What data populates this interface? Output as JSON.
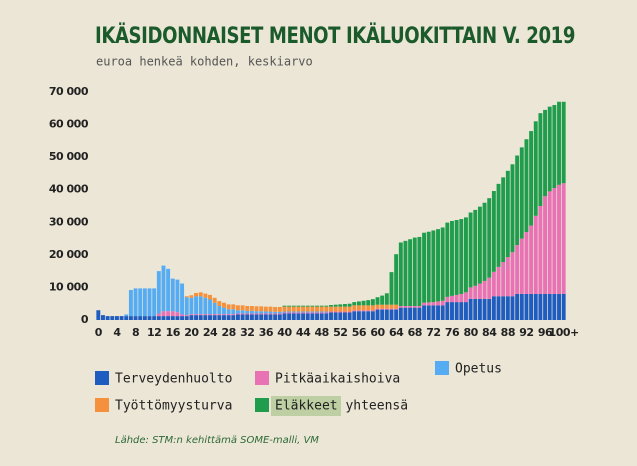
{
  "chart_data": {
    "type": "stacked-bar",
    "title": "IKÄSIDONNAISET MENOT IKÄLUOKITTAIN V. 2019",
    "subtitle": "euroa henkeä kohden, keskiarvo",
    "source": "Lähde: STM:n kehittämä SOME-malli, VM",
    "categories": [
      "0",
      null,
      null,
      null,
      "4",
      null,
      null,
      null,
      "8",
      null,
      null,
      null,
      "12",
      null,
      null,
      null,
      "16",
      null,
      null,
      null,
      "20",
      null,
      null,
      null,
      "24",
      null,
      null,
      null,
      "28",
      null,
      null,
      null,
      "32",
      null,
      null,
      null,
      "36",
      null,
      null,
      null,
      "40",
      null,
      null,
      null,
      "44",
      null,
      null,
      null,
      "48",
      null,
      null,
      null,
      "52",
      null,
      null,
      null,
      "56",
      null,
      null,
      null,
      "60",
      null,
      null,
      null,
      "64",
      null,
      null,
      null,
      "68",
      null,
      null,
      null,
      "72",
      null,
      null,
      null,
      "76",
      null,
      null,
      null,
      "80",
      null,
      null,
      null,
      "84",
      null,
      null,
      null,
      "88",
      null,
      null,
      null,
      "92",
      null,
      null,
      null,
      "96",
      null,
      null,
      null,
      "100+"
    ],
    "series": [
      {
        "name": "Terveydenhuolto",
        "color": "#1f5cbf",
        "values": [
          3000,
          1500,
          1200,
          1200,
          1200,
          1200,
          1200,
          1200,
          1200,
          1200,
          1200,
          1200,
          1200,
          1200,
          1200,
          1200,
          1200,
          1200,
          1200,
          1200,
          1500,
          1500,
          1500,
          1500,
          1500,
          1500,
          1500,
          1500,
          1500,
          1500,
          1700,
          1700,
          1700,
          1700,
          1700,
          1700,
          1700,
          1700,
          1700,
          1700,
          2000,
          2000,
          2000,
          2000,
          2000,
          2000,
          2000,
          2000,
          2000,
          2000,
          2300,
          2300,
          2300,
          2300,
          2300,
          2700,
          2700,
          2700,
          2700,
          2700,
          3200,
          3200,
          3200,
          3200,
          3200,
          3800,
          3800,
          3800,
          3800,
          3800,
          4500,
          4500,
          4500,
          4500,
          4500,
          5500,
          5500,
          5500,
          5500,
          5500,
          6500,
          6500,
          6500,
          6500,
          6500,
          7300,
          7300,
          7300,
          7300,
          7300,
          8000,
          8000,
          8000,
          8000,
          8000,
          8000,
          8000,
          8000,
          8000,
          8000,
          8000
        ]
      },
      {
        "name": "Pitkäaikaishoiva",
        "color": "#e872b4",
        "values": [
          0,
          0,
          0,
          0,
          0,
          0,
          0,
          0,
          0,
          0,
          0,
          0,
          0,
          800,
          1500,
          1500,
          1500,
          1200,
          500,
          300,
          300,
          300,
          300,
          300,
          300,
          300,
          300,
          300,
          300,
          300,
          300,
          300,
          300,
          300,
          300,
          300,
          300,
          300,
          300,
          300,
          300,
          300,
          300,
          300,
          300,
          300,
          300,
          300,
          300,
          300,
          300,
          300,
          300,
          300,
          300,
          300,
          300,
          300,
          300,
          300,
          300,
          300,
          300,
          300,
          300,
          500,
          500,
          500,
          500,
          500,
          800,
          900,
          1000,
          1200,
          1400,
          1600,
          1900,
          2200,
          2500,
          3000,
          3500,
          4000,
          4700,
          5500,
          6500,
          7500,
          9000,
          10500,
          12000,
          13500,
          15000,
          17000,
          19000,
          21000,
          24000,
          27000,
          30000,
          31500,
          32500,
          33500,
          34000
        ]
      },
      {
        "name": "Opetus",
        "color": "#55acf2",
        "values": [
          0,
          0,
          0,
          0,
          0,
          0,
          500,
          8000,
          8500,
          8500,
          8500,
          8500,
          8500,
          13000,
          14000,
          13000,
          10000,
          10000,
          9500,
          5500,
          5000,
          5500,
          5500,
          5000,
          4500,
          3500,
          2500,
          2000,
          1500,
          1500,
          1000,
          1000,
          800,
          800,
          700,
          700,
          600,
          600,
          500,
          500,
          300,
          300,
          300,
          300,
          300,
          300,
          300,
          300,
          300,
          300,
          0,
          0,
          0,
          0,
          0,
          0,
          0,
          0,
          0,
          0,
          0,
          0,
          0,
          0,
          0,
          0,
          0,
          0,
          0,
          0,
          0,
          0,
          0,
          0,
          0,
          0,
          0,
          0,
          0,
          0,
          0,
          0,
          0,
          0,
          0,
          0,
          0,
          0,
          0,
          0,
          0,
          0,
          0,
          0,
          0,
          0,
          0,
          0,
          0,
          0,
          0
        ]
      },
      {
        "name": "Työttömyysturva",
        "color": "#f5913c",
        "values": [
          0,
          0,
          0,
          0,
          0,
          0,
          0,
          0,
          0,
          0,
          0,
          0,
          0,
          0,
          0,
          0,
          0,
          0,
          0,
          300,
          800,
          1000,
          1200,
          1300,
          1400,
          1500,
          1500,
          1500,
          1500,
          1500,
          1500,
          1500,
          1500,
          1500,
          1500,
          1500,
          1500,
          1500,
          1500,
          1500,
          1500,
          1500,
          1500,
          1500,
          1500,
          1500,
          1500,
          1500,
          1500,
          1500,
          1500,
          1500,
          1500,
          1500,
          1500,
          1500,
          1500,
          1500,
          1500,
          1500,
          1200,
          1200,
          1200,
          1200,
          1200,
          0,
          0,
          0,
          0,
          0,
          0,
          0,
          0,
          0,
          0,
          0,
          0,
          0,
          0,
          0,
          0,
          0,
          0,
          0,
          0,
          0,
          0,
          0,
          0,
          0,
          0,
          0,
          0,
          0,
          0,
          0,
          0,
          0,
          0,
          0,
          0
        ]
      },
      {
        "name": "Eläkkeet yhteensä",
        "color": "#1f9d4c",
        "values": [
          0,
          0,
          0,
          0,
          0,
          0,
          0,
          0,
          0,
          0,
          0,
          0,
          0,
          0,
          0,
          0,
          0,
          0,
          0,
          0,
          0,
          0,
          0,
          0,
          0,
          0,
          0,
          0,
          0,
          0,
          0,
          0,
          0,
          0,
          0,
          0,
          0,
          0,
          0,
          0,
          300,
          300,
          300,
          300,
          300,
          300,
          300,
          300,
          300,
          300,
          500,
          600,
          700,
          800,
          900,
          1000,
          1200,
          1400,
          1600,
          1900,
          2300,
          2800,
          3500,
          10000,
          15500,
          19500,
          20000,
          20500,
          21000,
          21200,
          21500,
          21700,
          22000,
          22200,
          22500,
          22800,
          23000,
          23000,
          23000,
          23000,
          23000,
          23300,
          23600,
          24000,
          24400,
          24800,
          25500,
          26000,
          26500,
          27000,
          27500,
          28000,
          28500,
          29000,
          29000,
          28500,
          26500,
          26000,
          25500,
          25500,
          25000
        ]
      }
    ],
    "ylim": [
      0,
      70000
    ],
    "yticks": [
      0,
      {
        "value": 10000,
        "label": "10 000"
      },
      {
        "value": 20000,
        "label": "20 000"
      },
      {
        "value": 30000,
        "label": "30 000"
      },
      {
        "value": 40000,
        "label": "40 000"
      },
      {
        "value": 50000,
        "label": "50 000"
      },
      {
        "value": 60000,
        "label": "60 000"
      },
      {
        "value": 70000,
        "label": "70 000"
      }
    ]
  }
}
